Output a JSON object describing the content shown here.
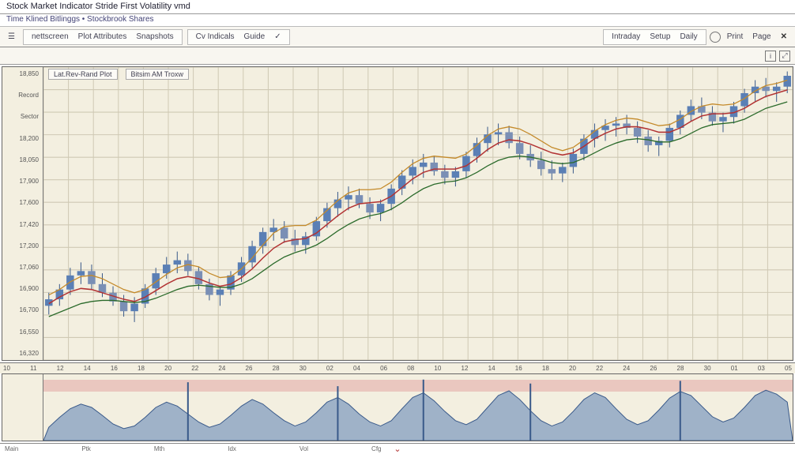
{
  "window": {
    "title": "Stock Market Indicator Stride First Volatility vmd",
    "subtitle": "Time Klined Bitlinggs • Stockbrook Shares"
  },
  "toolbar": {
    "left_icon": "menu-icon",
    "group1": [
      "nettscreen",
      "Plot Attributes",
      "Snapshots"
    ],
    "group2": [
      "Cv Indicals",
      "Guide",
      "✓"
    ],
    "right_group": [
      "Intraday",
      "Setup",
      "Daily"
    ],
    "print_label": "Print",
    "page_label": "Page"
  },
  "subtoolbar": {
    "info_icons": [
      "i",
      "⤢"
    ]
  },
  "chart": {
    "header_labels": [
      "Lat.Rev-Rand Plot",
      "Bitsim AM Troxw"
    ],
    "background_color": "#f3efe0",
    "grid_color": "#cfc9b4",
    "yaxis_labels": [
      "18,850",
      "Record",
      "Sector",
      "18,200",
      "18,050",
      "17,900",
      "17,600",
      "17,420",
      "17,200",
      "17,060",
      "16,900",
      "16,700",
      "16,550",
      "16,320"
    ],
    "xaxis_labels": [
      "10",
      "11",
      "12",
      "14",
      "16",
      "18",
      "20",
      "22",
      "24",
      "26",
      "28",
      "30",
      "02",
      "04",
      "06",
      "08",
      "10",
      "12",
      "14",
      "16",
      "18",
      "20",
      "22",
      "24",
      "26",
      "28",
      "30",
      "01",
      "03",
      "05"
    ],
    "ylim": [
      16200,
      18900
    ],
    "series": {
      "type": "candlestick",
      "count": 70,
      "ohlc": [
        [
          16700,
          16820,
          16620,
          16760
        ],
        [
          16760,
          16900,
          16700,
          16850
        ],
        [
          16850,
          17050,
          16800,
          16980
        ],
        [
          16980,
          17100,
          16900,
          17020
        ],
        [
          17020,
          17080,
          16850,
          16900
        ],
        [
          16900,
          17000,
          16780,
          16820
        ],
        [
          16820,
          16880,
          16700,
          16740
        ],
        [
          16740,
          16800,
          16600,
          16650
        ],
        [
          16650,
          16780,
          16550,
          16720
        ],
        [
          16720,
          16900,
          16680,
          16860
        ],
        [
          16860,
          17050,
          16800,
          17000
        ],
        [
          17000,
          17150,
          16950,
          17080
        ],
        [
          17080,
          17200,
          17000,
          17120
        ],
        [
          17120,
          17180,
          16980,
          17020
        ],
        [
          17020,
          17060,
          16850,
          16900
        ],
        [
          16900,
          16950,
          16750,
          16800
        ],
        [
          16800,
          16880,
          16700,
          16850
        ],
        [
          16850,
          17020,
          16800,
          16980
        ],
        [
          16980,
          17150,
          16920,
          17100
        ],
        [
          17100,
          17300,
          17050,
          17250
        ],
        [
          17250,
          17420,
          17180,
          17380
        ],
        [
          17380,
          17500,
          17300,
          17420
        ],
        [
          17420,
          17480,
          17280,
          17320
        ],
        [
          17320,
          17400,
          17200,
          17260
        ],
        [
          17260,
          17380,
          17180,
          17340
        ],
        [
          17340,
          17520,
          17300,
          17480
        ],
        [
          17480,
          17650,
          17420,
          17600
        ],
        [
          17600,
          17750,
          17520,
          17680
        ],
        [
          17680,
          17800,
          17580,
          17720
        ],
        [
          17720,
          17780,
          17600,
          17640
        ],
        [
          17640,
          17700,
          17500,
          17560
        ],
        [
          17560,
          17680,
          17480,
          17640
        ],
        [
          17640,
          17820,
          17580,
          17780
        ],
        [
          17780,
          17950,
          17720,
          17900
        ],
        [
          17900,
          18050,
          17820,
          17980
        ],
        [
          17980,
          18100,
          17880,
          18020
        ],
        [
          18020,
          18080,
          17900,
          17940
        ],
        [
          17940,
          18000,
          17820,
          17880
        ],
        [
          17880,
          17980,
          17800,
          17940
        ],
        [
          17940,
          18120,
          17880,
          18080
        ],
        [
          18080,
          18250,
          18020,
          18200
        ],
        [
          18200,
          18350,
          18120,
          18280
        ],
        [
          18280,
          18380,
          18180,
          18300
        ],
        [
          18300,
          18360,
          18150,
          18200
        ],
        [
          18200,
          18260,
          18050,
          18100
        ],
        [
          18100,
          18180,
          17980,
          18040
        ],
        [
          18040,
          18120,
          17900,
          17960
        ],
        [
          17960,
          18040,
          17860,
          17920
        ],
        [
          17920,
          18020,
          17840,
          17980
        ],
        [
          17980,
          18150,
          17920,
          18100
        ],
        [
          18100,
          18280,
          18040,
          18240
        ],
        [
          18240,
          18380,
          18160,
          18320
        ],
        [
          18320,
          18420,
          18220,
          18360
        ],
        [
          18360,
          18440,
          18260,
          18380
        ],
        [
          18380,
          18460,
          18280,
          18340
        ],
        [
          18340,
          18400,
          18200,
          18260
        ],
        [
          18260,
          18320,
          18120,
          18180
        ],
        [
          18180,
          18260,
          18080,
          18220
        ],
        [
          18220,
          18380,
          18160,
          18340
        ],
        [
          18340,
          18500,
          18280,
          18460
        ],
        [
          18460,
          18600,
          18400,
          18540
        ],
        [
          18540,
          18620,
          18420,
          18480
        ],
        [
          18480,
          18540,
          18360,
          18400
        ],
        [
          18400,
          18480,
          18300,
          18440
        ],
        [
          18440,
          18580,
          18380,
          18540
        ],
        [
          18540,
          18700,
          18480,
          18660
        ],
        [
          18660,
          18780,
          18580,
          18720
        ],
        [
          18720,
          18800,
          18620,
          18680
        ],
        [
          18680,
          18760,
          18580,
          18720
        ],
        [
          18720,
          18860,
          18660,
          18820
        ]
      ],
      "candle_up_color": "#5a7fb5",
      "candle_dn_color": "#7a8fb5",
      "wick_color": "#3a5a8a"
    },
    "overlays": [
      {
        "name": "MA-red",
        "color": "#b23333",
        "width": 1.4,
        "data": [
          16720,
          16780,
          16830,
          16860,
          16850,
          16820,
          16790,
          16760,
          16740,
          16780,
          16840,
          16900,
          16950,
          16970,
          16950,
          16910,
          16880,
          16900,
          16960,
          17040,
          17140,
          17230,
          17290,
          17310,
          17320,
          17370,
          17450,
          17530,
          17600,
          17640,
          17650,
          17660,
          17710,
          17790,
          17870,
          17930,
          17960,
          17960,
          17960,
          17990,
          18060,
          18140,
          18200,
          18230,
          18220,
          18190,
          18150,
          18110,
          18090,
          18110,
          18170,
          18240,
          18290,
          18330,
          18350,
          18350,
          18330,
          18300,
          18300,
          18340,
          18400,
          18450,
          18470,
          18470,
          18480,
          18520,
          18580,
          18630,
          18660,
          18690
        ]
      },
      {
        "name": "MA-green",
        "color": "#2a6a2a",
        "width": 1.2,
        "data": [
          16600,
          16640,
          16680,
          16720,
          16740,
          16750,
          16750,
          16740,
          16730,
          16740,
          16770,
          16810,
          16850,
          16880,
          16890,
          16880,
          16870,
          16870,
          16900,
          16950,
          17020,
          17090,
          17150,
          17190,
          17220,
          17260,
          17320,
          17390,
          17450,
          17500,
          17530,
          17550,
          17590,
          17650,
          17720,
          17780,
          17820,
          17840,
          17850,
          17880,
          17930,
          17990,
          18040,
          18070,
          18080,
          18070,
          18050,
          18020,
          18010,
          18020,
          18060,
          18110,
          18160,
          18200,
          18230,
          18240,
          18230,
          18210,
          18210,
          18240,
          18290,
          18340,
          18370,
          18380,
          18390,
          18420,
          18470,
          18520,
          18550,
          18580
        ]
      },
      {
        "name": "MA-orange",
        "color": "#c48a2a",
        "width": 1.2,
        "data": [
          16800,
          16850,
          16920,
          16970,
          16980,
          16950,
          16900,
          16850,
          16820,
          16850,
          16920,
          16990,
          17050,
          17080,
          17060,
          17000,
          16960,
          16970,
          17040,
          17140,
          17260,
          17370,
          17430,
          17440,
          17440,
          17490,
          17580,
          17670,
          17740,
          17770,
          17770,
          17780,
          17840,
          17930,
          18010,
          18060,
          18080,
          18070,
          18060,
          18100,
          18180,
          18270,
          18330,
          18350,
          18330,
          18280,
          18220,
          18160,
          18130,
          18160,
          18230,
          18310,
          18370,
          18410,
          18430,
          18420,
          18390,
          18360,
          18370,
          18420,
          18490,
          18540,
          18560,
          18550,
          18560,
          18610,
          18680,
          18730,
          18750,
          18780
        ]
      }
    ]
  },
  "indicator": {
    "type": "area",
    "band": {
      "top_pct": 8,
      "height_pct": 18,
      "color": "rgba(225,150,150,0.45)"
    },
    "ylim": [
      0,
      100
    ],
    "area_color": "rgba(90,127,181,0.55)",
    "stroke_color": "#3a5a8a",
    "data": [
      20,
      35,
      48,
      55,
      50,
      38,
      25,
      18,
      22,
      35,
      50,
      58,
      52,
      40,
      28,
      20,
      25,
      38,
      52,
      62,
      55,
      42,
      30,
      22,
      28,
      42,
      58,
      65,
      55,
      40,
      28,
      22,
      30,
      48,
      65,
      72,
      60,
      44,
      30,
      24,
      32,
      50,
      68,
      75,
      62,
      45,
      30,
      22,
      28,
      44,
      62,
      72,
      65,
      48,
      32,
      24,
      30,
      46,
      64,
      74,
      68,
      52,
      36,
      28,
      34,
      50,
      68,
      76,
      70,
      58
    ],
    "spikes": [
      {
        "x": 13,
        "h": 88
      },
      {
        "x": 27,
        "h": 82
      },
      {
        "x": 35,
        "h": 92
      },
      {
        "x": 45,
        "h": 86
      },
      {
        "x": 59,
        "h": 90
      }
    ]
  },
  "footer": {
    "labels": [
      "Main",
      "Ptk",
      "Mth",
      "Idx",
      "Vol",
      "Cfg"
    ],
    "caret": "⌄"
  }
}
